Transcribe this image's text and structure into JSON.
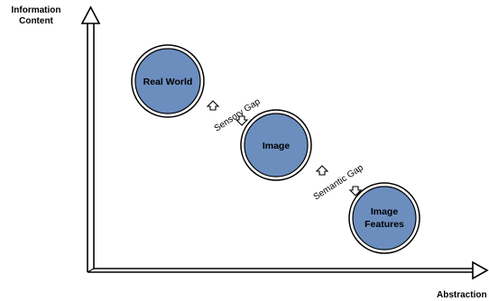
{
  "axes": {
    "y_label_line1": "Information",
    "y_label_line2": "Content",
    "x_label": "Abstraction"
  },
  "nodes": {
    "real_world": "Real World",
    "image": "Image",
    "image_features_line1": "Image",
    "image_features_line2": "Features"
  },
  "gaps": {
    "sensory": "Sensory Gap",
    "semantic": "Semantic Gap"
  },
  "colors": {
    "node_fill": "#6c8ebf",
    "node_stroke": "#000000",
    "axis": "#000000"
  }
}
